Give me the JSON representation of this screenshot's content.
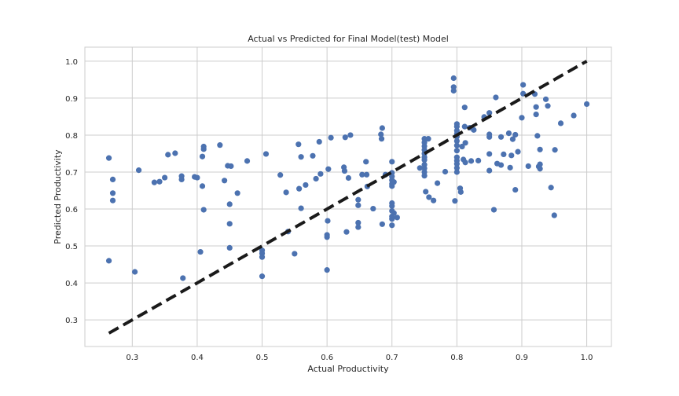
{
  "chart_data": {
    "type": "scatter",
    "title": "Actual vs Predicted for Final Model(test) Model",
    "xlabel": "Actual Productivity",
    "ylabel": "Predicted Productivity",
    "xlim": [
      0.227,
      1.038
    ],
    "ylim": [
      0.228,
      1.038
    ],
    "xticks": [
      0.3,
      0.4,
      0.5,
      0.6,
      0.7,
      0.8,
      0.9,
      1.0
    ],
    "yticks": [
      0.3,
      0.4,
      0.5,
      0.6,
      0.7,
      0.8,
      0.9,
      1.0
    ],
    "xtick_labels": [
      "0.3",
      "0.4",
      "0.5",
      "0.6",
      "0.7",
      "0.8",
      "0.9",
      "1.0"
    ],
    "ytick_labels": [
      "0.3",
      "0.4",
      "0.5",
      "0.6",
      "0.7",
      "0.8",
      "0.9",
      "1.0"
    ],
    "grid": true,
    "point_color": "#4c72b0",
    "reference_line": {
      "style": "dashed",
      "color": "#1a1a1a",
      "from": [
        0.264,
        0.264
      ],
      "to": [
        1.0,
        1.0
      ]
    },
    "points": [
      [
        0.264,
        0.738
      ],
      [
        0.264,
        0.46
      ],
      [
        0.27,
        0.68
      ],
      [
        0.27,
        0.643
      ],
      [
        0.27,
        0.623
      ],
      [
        0.304,
        0.43
      ],
      [
        0.31,
        0.705
      ],
      [
        0.334,
        0.672
      ],
      [
        0.342,
        0.674
      ],
      [
        0.35,
        0.685
      ],
      [
        0.355,
        0.747
      ],
      [
        0.366,
        0.751
      ],
      [
        0.376,
        0.689
      ],
      [
        0.376,
        0.68
      ],
      [
        0.378,
        0.413
      ],
      [
        0.396,
        0.687
      ],
      [
        0.4,
        0.685
      ],
      [
        0.405,
        0.484
      ],
      [
        0.408,
        0.742
      ],
      [
        0.408,
        0.662
      ],
      [
        0.41,
        0.769
      ],
      [
        0.41,
        0.762
      ],
      [
        0.41,
        0.598
      ],
      [
        0.435,
        0.773
      ],
      [
        0.442,
        0.677
      ],
      [
        0.447,
        0.717
      ],
      [
        0.45,
        0.56
      ],
      [
        0.45,
        0.613
      ],
      [
        0.45,
        0.495
      ],
      [
        0.452,
        0.716
      ],
      [
        0.462,
        0.643
      ],
      [
        0.477,
        0.73
      ],
      [
        0.5,
        0.488
      ],
      [
        0.5,
        0.47
      ],
      [
        0.5,
        0.48
      ],
      [
        0.5,
        0.418
      ],
      [
        0.506,
        0.749
      ],
      [
        0.528,
        0.692
      ],
      [
        0.537,
        0.645
      ],
      [
        0.54,
        0.539
      ],
      [
        0.55,
        0.479
      ],
      [
        0.556,
        0.775
      ],
      [
        0.557,
        0.655
      ],
      [
        0.56,
        0.741
      ],
      [
        0.56,
        0.602
      ],
      [
        0.567,
        0.665
      ],
      [
        0.578,
        0.744
      ],
      [
        0.583,
        0.682
      ],
      [
        0.588,
        0.782
      ],
      [
        0.59,
        0.695
      ],
      [
        0.6,
        0.53
      ],
      [
        0.6,
        0.524
      ],
      [
        0.6,
        0.435
      ],
      [
        0.601,
        0.568
      ],
      [
        0.602,
        0.708
      ],
      [
        0.606,
        0.793
      ],
      [
        0.626,
        0.713
      ],
      [
        0.627,
        0.703
      ],
      [
        0.628,
        0.794
      ],
      [
        0.63,
        0.538
      ],
      [
        0.633,
        0.684
      ],
      [
        0.636,
        0.8
      ],
      [
        0.648,
        0.625
      ],
      [
        0.648,
        0.61
      ],
      [
        0.648,
        0.563
      ],
      [
        0.648,
        0.551
      ],
      [
        0.654,
        0.693
      ],
      [
        0.66,
        0.728
      ],
      [
        0.661,
        0.693
      ],
      [
        0.662,
        0.661
      ],
      [
        0.671,
        0.601
      ],
      [
        0.683,
        0.802
      ],
      [
        0.684,
        0.79
      ],
      [
        0.685,
        0.819
      ],
      [
        0.685,
        0.559
      ],
      [
        0.69,
        0.693
      ],
      [
        0.7,
        0.728
      ],
      [
        0.7,
        0.698
      ],
      [
        0.7,
        0.688
      ],
      [
        0.7,
        0.678
      ],
      [
        0.7,
        0.668
      ],
      [
        0.7,
        0.662
      ],
      [
        0.7,
        0.616
      ],
      [
        0.7,
        0.608
      ],
      [
        0.7,
        0.595
      ],
      [
        0.7,
        0.58
      ],
      [
        0.7,
        0.573
      ],
      [
        0.7,
        0.556
      ],
      [
        0.703,
        0.673
      ],
      [
        0.703,
        0.589
      ],
      [
        0.708,
        0.577
      ],
      [
        0.743,
        0.711
      ],
      [
        0.75,
        0.79
      ],
      [
        0.75,
        0.78
      ],
      [
        0.75,
        0.77
      ],
      [
        0.75,
        0.76
      ],
      [
        0.75,
        0.75
      ],
      [
        0.75,
        0.74
      ],
      [
        0.75,
        0.733
      ],
      [
        0.75,
        0.72
      ],
      [
        0.75,
        0.71
      ],
      [
        0.75,
        0.7
      ],
      [
        0.75,
        0.69
      ],
      [
        0.752,
        0.647
      ],
      [
        0.756,
        0.79
      ],
      [
        0.757,
        0.632
      ],
      [
        0.764,
        0.623
      ],
      [
        0.77,
        0.67
      ],
      [
        0.782,
        0.701
      ],
      [
        0.795,
        0.954
      ],
      [
        0.795,
        0.93
      ],
      [
        0.795,
        0.92
      ],
      [
        0.797,
        0.622
      ],
      [
        0.8,
        0.83
      ],
      [
        0.8,
        0.823
      ],
      [
        0.8,
        0.812
      ],
      [
        0.8,
        0.804
      ],
      [
        0.8,
        0.796
      ],
      [
        0.8,
        0.784
      ],
      [
        0.8,
        0.772
      ],
      [
        0.8,
        0.758
      ],
      [
        0.8,
        0.74
      ],
      [
        0.8,
        0.731
      ],
      [
        0.8,
        0.722
      ],
      [
        0.8,
        0.711
      ],
      [
        0.8,
        0.7
      ],
      [
        0.805,
        0.656
      ],
      [
        0.806,
        0.646
      ],
      [
        0.808,
        0.769
      ],
      [
        0.81,
        0.734
      ],
      [
        0.812,
        0.875
      ],
      [
        0.812,
        0.823
      ],
      [
        0.813,
        0.726
      ],
      [
        0.813,
        0.779
      ],
      [
        0.82,
        0.82
      ],
      [
        0.822,
        0.73
      ],
      [
        0.826,
        0.814
      ],
      [
        0.833,
        0.731
      ],
      [
        0.842,
        0.849
      ],
      [
        0.85,
        0.86
      ],
      [
        0.85,
        0.802
      ],
      [
        0.85,
        0.795
      ],
      [
        0.85,
        0.749
      ],
      [
        0.85,
        0.704
      ],
      [
        0.857,
        0.598
      ],
      [
        0.86,
        0.902
      ],
      [
        0.862,
        0.723
      ],
      [
        0.868,
        0.719
      ],
      [
        0.868,
        0.795
      ],
      [
        0.872,
        0.748
      ],
      [
        0.88,
        0.805
      ],
      [
        0.882,
        0.712
      ],
      [
        0.884,
        0.745
      ],
      [
        0.886,
        0.789
      ],
      [
        0.89,
        0.801
      ],
      [
        0.89,
        0.652
      ],
      [
        0.894,
        0.755
      ],
      [
        0.9,
        0.847
      ],
      [
        0.902,
        0.936
      ],
      [
        0.902,
        0.912
      ],
      [
        0.91,
        0.716
      ],
      [
        0.92,
        0.911
      ],
      [
        0.922,
        0.876
      ],
      [
        0.922,
        0.856
      ],
      [
        0.924,
        0.798
      ],
      [
        0.926,
        0.715
      ],
      [
        0.928,
        0.761
      ],
      [
        0.928,
        0.721
      ],
      [
        0.928,
        0.709
      ],
      [
        0.937,
        0.897
      ],
      [
        0.94,
        0.879
      ],
      [
        0.945,
        0.658
      ],
      [
        0.95,
        0.583
      ],
      [
        0.951,
        0.76
      ],
      [
        0.96,
        0.832
      ],
      [
        0.98,
        0.853
      ],
      [
        1.0,
        0.884
      ]
    ]
  }
}
